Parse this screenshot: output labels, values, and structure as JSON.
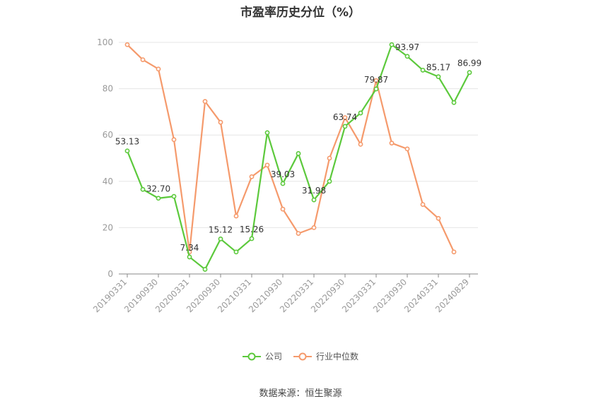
{
  "chart_data": {
    "type": "line",
    "title": "市盈率历史分位（%）",
    "x_tick_labels": [
      "20190331",
      "20190930",
      "20200331",
      "20200930",
      "20210331",
      "20210930",
      "20220331",
      "20220930",
      "20230331",
      "20230930",
      "20240331",
      "20240829"
    ],
    "yticks": [
      0,
      20,
      40,
      60,
      80,
      100
    ],
    "ylim": [
      0,
      100
    ],
    "grid": true,
    "legend_position": "bottom",
    "series": [
      {
        "name": "公司",
        "color": "#5cc93c",
        "values": [
          53.13,
          36.5,
          32.7,
          33.5,
          7.34,
          2.0,
          15.12,
          9.5,
          15.26,
          61.0,
          39.03,
          52.0,
          31.98,
          40.0,
          63.74,
          69.5,
          79.87,
          99.0,
          93.97,
          88.0,
          85.17,
          74.0,
          86.99
        ],
        "labels": [
          "53.13",
          null,
          "32.70",
          null,
          "7.34",
          null,
          "15.12",
          null,
          "15.26",
          null,
          "39.03",
          null,
          "31.98",
          null,
          "63.74",
          null,
          "79.87",
          null,
          "93.97",
          null,
          "85.17",
          null,
          "86.99"
        ]
      },
      {
        "name": "行业中位数",
        "color": "#f59a6c",
        "values": [
          99.0,
          92.5,
          88.5,
          58.0,
          9.5,
          74.5,
          65.5,
          25.0,
          42.0,
          47.0,
          28.0,
          17.5,
          20.0,
          50.0,
          67.5,
          56.0,
          83.5,
          56.5,
          54.0,
          30.0,
          24.0,
          9.5
        ]
      }
    ]
  },
  "source_text": "数据来源：恒生聚源"
}
